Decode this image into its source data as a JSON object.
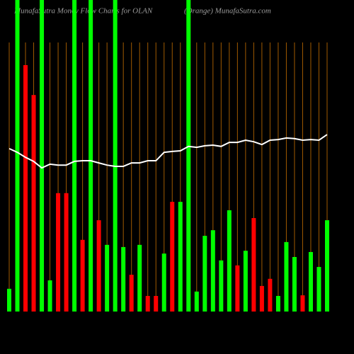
{
  "chart_data": {
    "type": "bar",
    "title": "MunafaSutra Money Flow Charts for OLAN",
    "subtitle": "(Orange) MunafaSutra.com",
    "ylim": [
      0,
      100
    ],
    "bars": {
      "values": [
        7.3,
        100,
        79.1,
        69.5,
        100,
        10,
        38,
        38,
        100,
        23,
        100,
        29.3,
        21.4,
        100,
        20.7,
        11.8,
        21.4,
        5,
        5,
        18.6,
        35.2,
        35.2,
        100,
        6.4,
        24.3,
        26.1,
        16.4,
        32.5,
        14.8,
        19.5,
        30,
        8.2,
        10.5,
        5,
        22.3,
        17.5,
        5.2,
        19.1,
        14.3,
        29.3
      ],
      "colors": [
        "#00ff00",
        "#00ff00",
        "#ff0000",
        "#ff0000",
        "#00ff00",
        "#00ff00",
        "#ff0000",
        "#ff0000",
        "#00ff00",
        "#ff0000",
        "#00ff00",
        "#ff0000",
        "#00ff00",
        "#00ff00",
        "#00ff00",
        "#ff0000",
        "#00ff00",
        "#ff0000",
        "#ff0000",
        "#00ff00",
        "#ff0000",
        "#00ff00",
        "#00ff00",
        "#00ff00",
        "#00ff00",
        "#00ff00",
        "#00ff00",
        "#00ff00",
        "#ff0000",
        "#00ff00",
        "#ff0000",
        "#ff0000",
        "#ff0000",
        "#00ff00",
        "#00ff00",
        "#00ff00",
        "#ff0000",
        "#00ff00",
        "#00ff00",
        "#00ff00"
      ]
    },
    "line": {
      "color": "#ffffff",
      "values": [
        52.3,
        51.1,
        49.5,
        48.2,
        46.1,
        47.3,
        47,
        47,
        48.2,
        48.4,
        48.4,
        47.7,
        47,
        46.6,
        46.6,
        47.7,
        47.7,
        48.4,
        48.4,
        51.1,
        51.4,
        51.6,
        53,
        52.7,
        53.2,
        53.4,
        53,
        54.3,
        54.3,
        55,
        54.5,
        53.6,
        55,
        55.2,
        55.7,
        55.5,
        55,
        55.2,
        55,
        56.8
      ]
    },
    "grid_color": "#a05a00"
  }
}
